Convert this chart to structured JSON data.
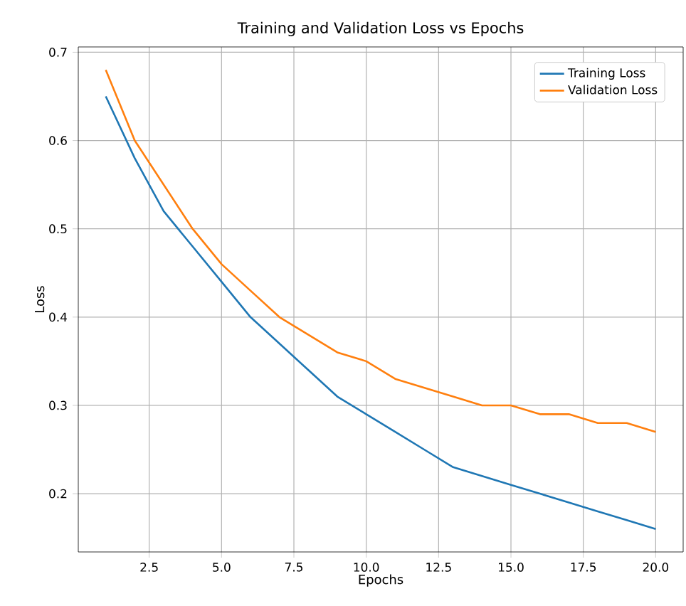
{
  "chart_data": {
    "type": "line",
    "title": "Training and Validation Loss vs Epochs",
    "xlabel": "Epochs",
    "ylabel": "Loss",
    "x": [
      1,
      2,
      3,
      4,
      5,
      6,
      7,
      8,
      9,
      10,
      11,
      12,
      13,
      14,
      15,
      16,
      17,
      18,
      19,
      20
    ],
    "series": [
      {
        "name": "Training Loss",
        "color": "#1f77b4",
        "values": [
          0.65,
          0.58,
          0.52,
          0.48,
          0.44,
          0.4,
          0.37,
          0.34,
          0.31,
          0.29,
          0.27,
          0.25,
          0.23,
          0.22,
          0.21,
          0.2,
          0.19,
          0.18,
          0.17,
          0.16
        ]
      },
      {
        "name": "Validation Loss",
        "color": "#ff7f0e",
        "values": [
          0.68,
          0.6,
          0.55,
          0.5,
          0.46,
          0.43,
          0.4,
          0.38,
          0.36,
          0.35,
          0.33,
          0.32,
          0.31,
          0.3,
          0.3,
          0.29,
          0.29,
          0.28,
          0.28,
          0.27
        ]
      }
    ],
    "xlim": [
      0.05,
      20.95
    ],
    "ylim": [
      0.134,
      0.706
    ],
    "xticks": [
      2.5,
      {
        "value": 5,
        "label": "5.0"
      },
      7.5,
      {
        "value": 10,
        "label": "10.0"
      },
      12.5,
      {
        "value": 15,
        "label": "15.0"
      },
      17.5,
      {
        "value": 20,
        "label": "20.0"
      }
    ],
    "yticks": [
      0.2,
      0.3,
      0.4,
      0.5,
      0.6,
      0.7
    ],
    "grid": true,
    "legend": "top right",
    "marker": "none",
    "line_style": "solid"
  }
}
